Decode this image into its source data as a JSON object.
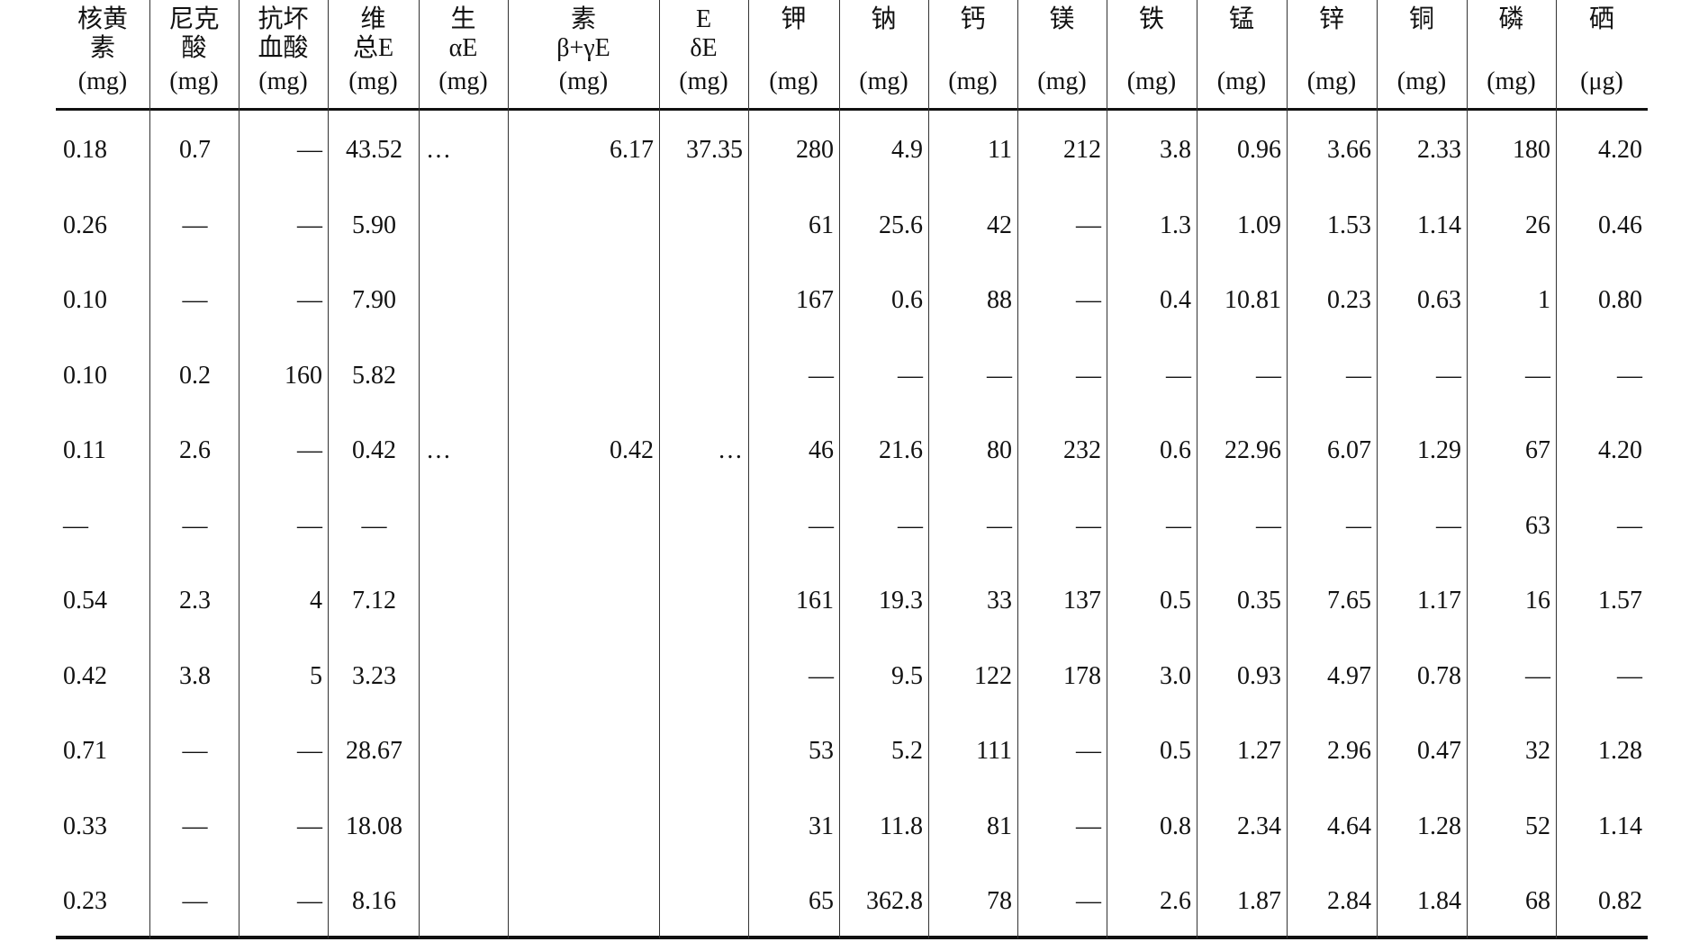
{
  "table": {
    "headers": [
      {
        "lines": [
          "核黄",
          "素",
          "(mg)"
        ]
      },
      {
        "lines": [
          "尼克",
          "酸",
          "(mg)"
        ]
      },
      {
        "lines": [
          "抗坏",
          "血酸",
          "(mg)"
        ]
      },
      {
        "lines": [
          "维",
          "总E",
          "(mg)"
        ]
      },
      {
        "lines": [
          "生",
          "αE",
          "(mg)"
        ]
      },
      {
        "lines": [
          "素",
          "β+γE",
          "(mg)"
        ]
      },
      {
        "lines": [
          "E",
          "δE",
          "(mg)"
        ]
      },
      {
        "lines": [
          "钾",
          "(mg)"
        ]
      },
      {
        "lines": [
          "钠",
          "(mg)"
        ]
      },
      {
        "lines": [
          "钙",
          "(mg)"
        ]
      },
      {
        "lines": [
          "镁",
          "(mg)"
        ]
      },
      {
        "lines": [
          "铁",
          "(mg)"
        ]
      },
      {
        "lines": [
          "锰",
          "(mg)"
        ]
      },
      {
        "lines": [
          "锌",
          "(mg)"
        ]
      },
      {
        "lines": [
          "铜",
          "(mg)"
        ]
      },
      {
        "lines": [
          "磷",
          "(mg)"
        ]
      },
      {
        "lines": [
          "硒",
          "(μg)"
        ]
      }
    ],
    "rows": [
      [
        "0.18",
        "0.7",
        "—",
        "43.52",
        "…",
        "6.17",
        "37.35",
        "280",
        "4.9",
        "11",
        "212",
        "3.8",
        "0.96",
        "3.66",
        "2.33",
        "180",
        "4.20"
      ],
      [
        "0.26",
        "—",
        "—",
        "5.90",
        null,
        null,
        null,
        "61",
        "25.6",
        "42",
        "—",
        "1.3",
        "1.09",
        "1.53",
        "1.14",
        "26",
        "0.46"
      ],
      [
        "0.10",
        "—",
        "—",
        "7.90",
        null,
        null,
        null,
        "167",
        "0.6",
        "88",
        "—",
        "0.4",
        "10.81",
        "0.23",
        "0.63",
        "1",
        "0.80"
      ],
      [
        "0.10",
        "0.2",
        "160",
        "5.82",
        null,
        null,
        null,
        "—",
        "—",
        "—",
        "—",
        "—",
        "—",
        "—",
        "—",
        "—",
        "—"
      ],
      [
        "0.11",
        "2.6",
        "—",
        "0.42",
        "…",
        "0.42",
        "…",
        "46",
        "21.6",
        "80",
        "232",
        "0.6",
        "22.96",
        "6.07",
        "1.29",
        "67",
        "4.20"
      ],
      [
        "—",
        "—",
        "—",
        "—",
        null,
        null,
        null,
        "—",
        "—",
        "—",
        "—",
        "—",
        "—",
        "—",
        "—",
        "63",
        "—"
      ],
      [
        "0.54",
        "2.3",
        "4",
        "7.12",
        null,
        null,
        null,
        "161",
        "19.3",
        "33",
        "137",
        "0.5",
        "0.35",
        "7.65",
        "1.17",
        "16",
        "1.57"
      ],
      [
        "0.42",
        "3.8",
        "5",
        "3.23",
        null,
        null,
        null,
        "—",
        "9.5",
        "122",
        "178",
        "3.0",
        "0.93",
        "4.97",
        "0.78",
        "—",
        "—"
      ],
      [
        "0.71",
        "—",
        "—",
        "28.67",
        null,
        null,
        null,
        "53",
        "5.2",
        "111",
        "—",
        "0.5",
        "1.27",
        "2.96",
        "0.47",
        "32",
        "1.28"
      ],
      [
        "0.33",
        "—",
        "—",
        "18.08",
        null,
        null,
        null,
        "31",
        "11.8",
        "81",
        "—",
        "0.8",
        "2.34",
        "4.64",
        "1.28",
        "52",
        "1.14"
      ],
      [
        "0.23",
        "—",
        "—",
        "8.16",
        null,
        null,
        null,
        "65",
        "362.8",
        "78",
        "—",
        "2.6",
        "1.87",
        "2.84",
        "1.84",
        "68",
        "0.82"
      ]
    ]
  }
}
